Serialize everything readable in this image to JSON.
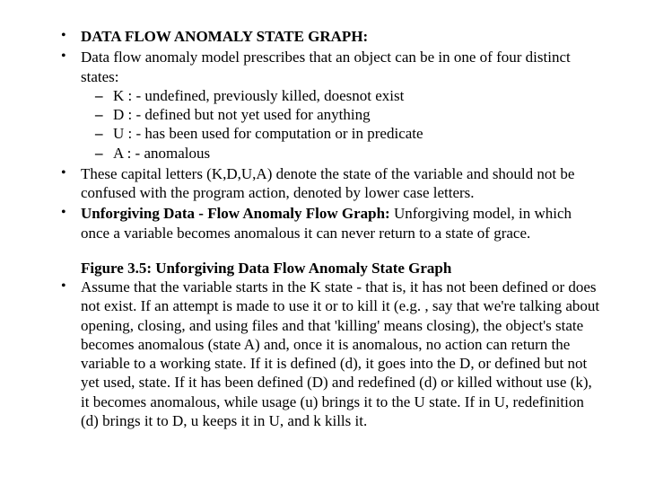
{
  "bullet1": "DATA FLOW ANOMALY STATE GRAPH:",
  "bullet2": "Data flow anomaly model prescribes that an object can be in one of four distinct states:",
  "sub_k": "K : - undefined, previously killed, doesnot exist",
  "sub_d": "D : - defined but not yet used for anything",
  "sub_u": "U : - has been used for computation or in predicate",
  "sub_a": "A : - anomalous",
  "bullet3": "These capital letters (K,D,U,A) denote the state of the variable and should not be confused with the program action, denoted by lower case letters.",
  "bullet4_label": "Unforgiving Data - Flow Anomaly Flow Graph:",
  "bullet4_rest": " Unforgiving model, in which once a variable becomes anomalous it can never return to a state of grace.",
  "figure_caption": "Figure 3.5: Unforgiving Data Flow Anomaly State Graph",
  "bullet5": "Assume that the variable starts in the K state - that is, it has not been defined or does not exist. If an attempt is made to use it or to kill it (e.g. , say that we're talking about opening, closing, and using files and that 'killing' means closing), the object's state becomes anomalous (state A) and, once it is anomalous, no action can return the variable to a working state. If it is defined (d), it goes into the D, or defined but not yet used, state. If it has been defined (D) and redefined (d) or killed without use (k), it becomes anomalous, while usage (u) brings it to the U state. If in U, redefinition (d) brings it to D, u keeps it in U, and k kills it."
}
